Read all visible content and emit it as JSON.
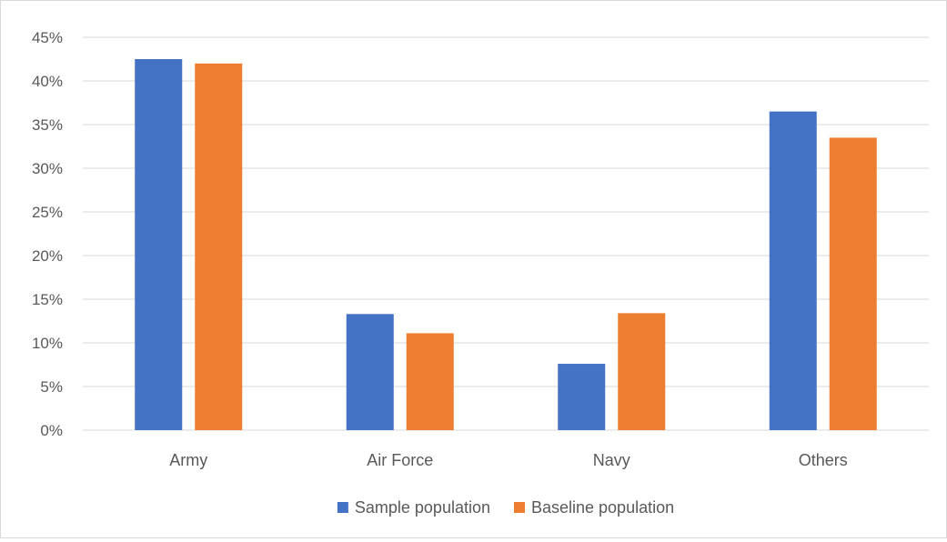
{
  "chart_data": {
    "type": "bar",
    "categories": [
      "Army",
      "Air Force",
      "Navy",
      "Others"
    ],
    "series": [
      {
        "name": "Sample population",
        "values": [
          42.5,
          13.3,
          7.6,
          36.5
        ],
        "color": "#4472c4"
      },
      {
        "name": "Baseline population",
        "values": [
          42.0,
          11.1,
          13.4,
          33.5
        ],
        "color": "#ed7d31"
      }
    ],
    "y_ticks": [
      "0%",
      "5%",
      "10%",
      "15%",
      "20%",
      "25%",
      "30%",
      "35%",
      "40%",
      "45%"
    ],
    "ylim": [
      0,
      45
    ],
    "grid": true,
    "legend_position": "bottom",
    "gridline_color": "#d9d9d9",
    "text_color": "#595959"
  }
}
